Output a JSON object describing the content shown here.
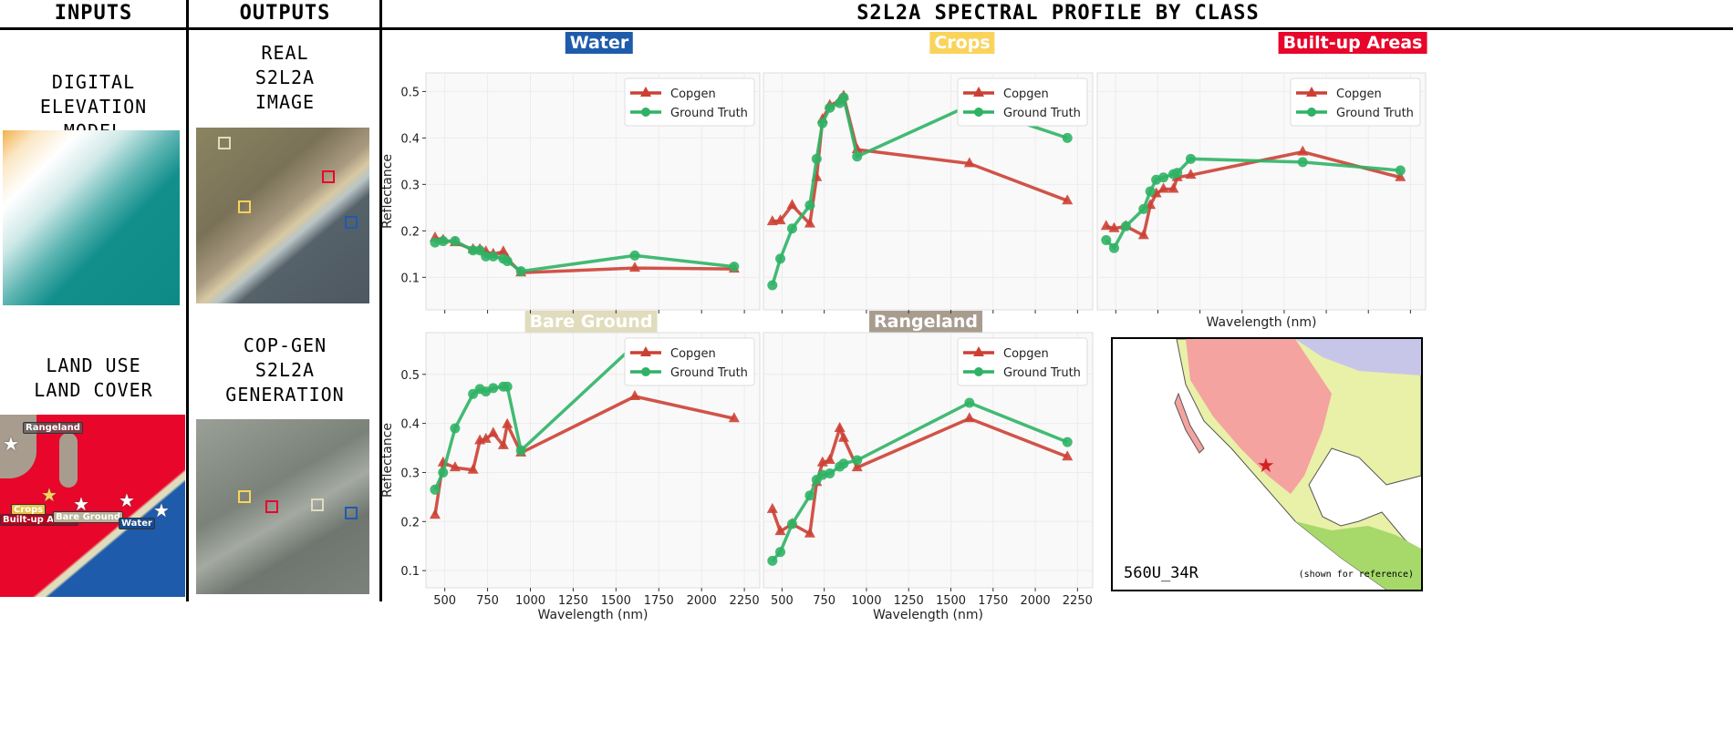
{
  "headers": {
    "inputs": "INPUTS",
    "outputs": "OUTPUTS",
    "profile": "S2L2A SPECTRAL PROFILE BY CLASS"
  },
  "inputs": {
    "dem_label": [
      "DIGITAL",
      "ELEVATION",
      "MODEL"
    ],
    "lulc_label": [
      "LAND USE",
      "LAND COVER"
    ],
    "lulc_tags": [
      "Rangeland",
      "Crops",
      "Built-up Areas",
      "Bare Ground",
      "Water"
    ]
  },
  "outputs": {
    "real_label": [
      "REAL",
      "S2L2A",
      "IMAGE"
    ],
    "gen_label": [
      "COP-GEN",
      "S2L2A",
      "GENERATION"
    ]
  },
  "class_colors": {
    "Water": "#1f5bab",
    "Crops": "#f9d35b",
    "Built-up Areas": "#e8062b",
    "Bare Ground": "#e0dcbc",
    "Rangeland": "#a89c8f"
  },
  "series_colors": {
    "Copgen": "#cc4034",
    "Ground Truth": "#2fb265"
  },
  "map": {
    "tile": "560U_34R",
    "note": "(shown for reference)"
  },
  "chart_data": [
    {
      "type": "line",
      "title": "Water",
      "xlabel": "",
      "ylabel": "Reflectance",
      "xlim": [
        390,
        2340
      ],
      "ylim": [
        0.03,
        0.54
      ],
      "grid": true,
      "legend": "top-right",
      "xticks": [
        500,
        750,
        1000,
        1250,
        1500,
        1750,
        2000,
        2250
      ],
      "yticks": [
        0.1,
        0.2,
        0.3,
        0.4,
        0.5
      ],
      "x": [
        443,
        490,
        560,
        665,
        705,
        740,
        783,
        842,
        865,
        945,
        1610,
        2190
      ],
      "series": [
        {
          "name": "Copgen",
          "marker": "triangle",
          "values": [
            0.185,
            0.18,
            0.175,
            0.16,
            0.16,
            0.155,
            0.15,
            0.155,
            0.14,
            0.11,
            0.12,
            0.118
          ]
        },
        {
          "name": "Ground Truth",
          "marker": "circle",
          "values": [
            0.175,
            0.178,
            0.178,
            0.158,
            0.158,
            0.145,
            0.145,
            0.14,
            0.135,
            0.113,
            0.147,
            0.123
          ]
        }
      ]
    },
    {
      "type": "line",
      "title": "Crops",
      "xlabel": "",
      "ylabel": "",
      "xlim": [
        390,
        2340
      ],
      "ylim": [
        0.03,
        0.54
      ],
      "grid": true,
      "legend": "top-right",
      "xticks": [
        500,
        750,
        1000,
        1250,
        1500,
        1750,
        2000,
        2250
      ],
      "yticks": [
        0.1,
        0.2,
        0.3,
        0.4,
        0.5
      ],
      "x": [
        443,
        490,
        560,
        665,
        705,
        740,
        783,
        842,
        865,
        945,
        1610,
        2190
      ],
      "series": [
        {
          "name": "Copgen",
          "marker": "triangle",
          "values": [
            0.22,
            0.222,
            0.255,
            0.215,
            0.315,
            0.44,
            0.47,
            0.48,
            0.49,
            0.375,
            0.345,
            0.265
          ]
        },
        {
          "name": "Ground Truth",
          "marker": "circle",
          "values": [
            0.083,
            0.14,
            0.205,
            0.255,
            0.355,
            0.432,
            0.465,
            0.475,
            0.487,
            0.36,
            0.47,
            0.4
          ]
        }
      ]
    },
    {
      "type": "line",
      "title": "Built-up Areas",
      "xlabel": "Wavelength (nm)",
      "ylabel": "",
      "xlim": [
        390,
        2340
      ],
      "ylim": [
        0.03,
        0.54
      ],
      "grid": true,
      "legend": "top-right",
      "xticks": [
        500,
        750,
        1000,
        1250,
        1500,
        1750,
        2000,
        2250
      ],
      "yticks": [
        0.1,
        0.2,
        0.3,
        0.4,
        0.5
      ],
      "x": [
        443,
        490,
        560,
        665,
        705,
        740,
        783,
        842,
        865,
        945,
        1610,
        2190
      ],
      "series": [
        {
          "name": "Copgen",
          "marker": "triangle",
          "values": [
            0.21,
            0.205,
            0.21,
            0.19,
            0.255,
            0.28,
            0.29,
            0.29,
            0.315,
            0.32,
            0.37,
            0.315
          ]
        },
        {
          "name": "Ground Truth",
          "marker": "circle",
          "values": [
            0.18,
            0.163,
            0.21,
            0.247,
            0.285,
            0.31,
            0.315,
            0.322,
            0.325,
            0.355,
            0.348,
            0.33
          ]
        }
      ]
    },
    {
      "type": "line",
      "title": "Bare Ground",
      "xlabel": "Wavelength (nm)",
      "ylabel": "Reflectance",
      "xlim": [
        390,
        2340
      ],
      "ylim": [
        0.065,
        0.585
      ],
      "grid": true,
      "legend": "top-right",
      "xticks": [
        500,
        750,
        1000,
        1250,
        1500,
        1750,
        2000,
        2250
      ],
      "yticks": [
        0.1,
        0.2,
        0.3,
        0.4,
        0.5
      ],
      "x": [
        443,
        490,
        560,
        665,
        705,
        740,
        783,
        842,
        865,
        945,
        1610,
        2190
      ],
      "series": [
        {
          "name": "Copgen",
          "marker": "triangle",
          "values": [
            0.213,
            0.32,
            0.31,
            0.305,
            0.365,
            0.368,
            0.38,
            0.355,
            0.398,
            0.34,
            0.455,
            0.41
          ]
        },
        {
          "name": "Ground Truth",
          "marker": "circle",
          "values": [
            0.265,
            0.3,
            0.39,
            0.46,
            0.47,
            0.465,
            0.472,
            0.475,
            0.475,
            0.345,
            0.56,
            0.5
          ]
        }
      ]
    },
    {
      "type": "line",
      "title": "Rangeland",
      "xlabel": "Wavelength (nm)",
      "ylabel": "",
      "xlim": [
        390,
        2340
      ],
      "ylim": [
        0.065,
        0.585
      ],
      "grid": true,
      "legend": "top-right",
      "xticks": [
        500,
        750,
        1000,
        1250,
        1500,
        1750,
        2000,
        2250
      ],
      "yticks": [
        0.1,
        0.2,
        0.3,
        0.4,
        0.5
      ],
      "x": [
        443,
        490,
        560,
        665,
        705,
        740,
        783,
        842,
        865,
        945,
        1610,
        2190
      ],
      "series": [
        {
          "name": "Copgen",
          "marker": "triangle",
          "values": [
            0.225,
            0.18,
            0.195,
            0.175,
            0.28,
            0.32,
            0.325,
            0.39,
            0.37,
            0.31,
            0.41,
            0.332
          ]
        },
        {
          "name": "Ground Truth",
          "marker": "circle",
          "values": [
            0.12,
            0.138,
            0.195,
            0.253,
            0.285,
            0.295,
            0.298,
            0.312,
            0.318,
            0.325,
            0.442,
            0.362
          ]
        }
      ]
    }
  ]
}
